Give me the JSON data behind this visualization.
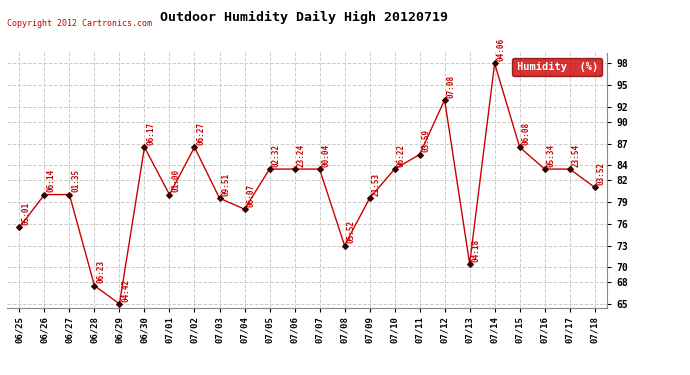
{
  "title": "Outdoor Humidity Daily High 20120719",
  "copyright": "Copyright 2012 Cartronics.com",
  "background_color": "#ffffff",
  "grid_color": "#cccccc",
  "line_color": "#cc0000",
  "point_color": "#330000",
  "label_color": "#cc0000",
  "ylim": [
    64.5,
    99.5
  ],
  "yticks": [
    65,
    68,
    70,
    73,
    76,
    79,
    82,
    84,
    87,
    90,
    92,
    95,
    98
  ],
  "dates": [
    "06/25",
    "06/26",
    "06/27",
    "06/28",
    "06/29",
    "06/30",
    "07/01",
    "07/02",
    "07/03",
    "07/04",
    "07/05",
    "07/06",
    "07/07",
    "07/08",
    "07/09",
    "07/10",
    "07/11",
    "07/12",
    "07/13",
    "07/14",
    "07/15",
    "07/16",
    "07/17",
    "07/18"
  ],
  "values": [
    75.5,
    80.0,
    80.0,
    67.5,
    65.0,
    86.5,
    80.0,
    86.5,
    79.5,
    78.0,
    83.5,
    83.5,
    83.5,
    73.0,
    79.5,
    83.5,
    85.5,
    93.0,
    70.5,
    98.0,
    86.5,
    83.5,
    83.5,
    81.0
  ],
  "time_labels": [
    "05:01",
    "06:14",
    "01:35",
    "06:23",
    "04:42",
    "06:17",
    "01:00",
    "06:27",
    "09:51",
    "06:07",
    "02:32",
    "23:24",
    "00:04",
    "05:52",
    "21:53",
    "06:22",
    "03:59",
    "07:08",
    "04:18",
    "04:06",
    "06:08",
    "05:34",
    "23:54",
    "03:52"
  ],
  "legend_label": "Humidity  (%)",
  "legend_bg": "#cc0000",
  "legend_fg": "#ffffff"
}
